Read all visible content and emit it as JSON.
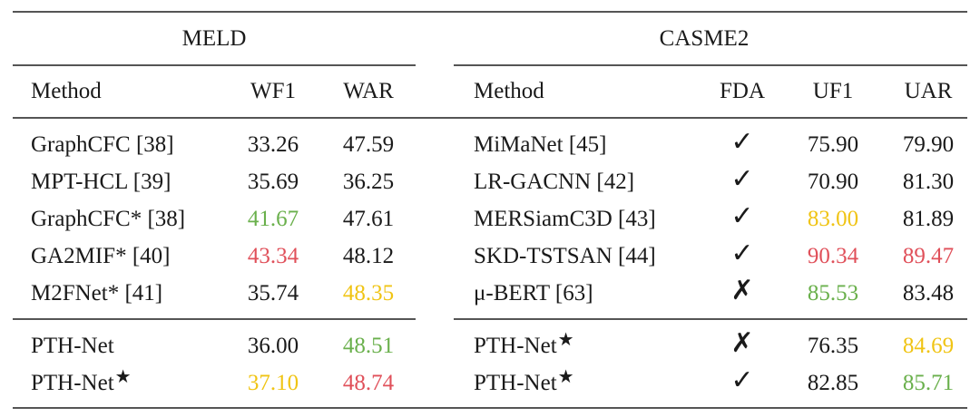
{
  "colors": {
    "red": "#e0505a",
    "green": "#6ab04c",
    "yellow": "#f0c414"
  },
  "meld": {
    "title": "MELD",
    "headers": [
      "Method",
      "WF1",
      "WAR"
    ],
    "rows": [
      {
        "method": "GraphCFC [38]",
        "wf1": "33.26",
        "war": "47.59"
      },
      {
        "method": "MPT-HCL [39]",
        "wf1": "35.69",
        "war": "36.25"
      },
      {
        "method": "GraphCFC* [38]",
        "wf1": "41.67",
        "war": "47.61"
      },
      {
        "method": "GA2MIF* [40]",
        "wf1": "43.34",
        "war": "48.12"
      },
      {
        "method": "M2FNet* [41]",
        "wf1": "35.74",
        "war": "48.35"
      },
      {
        "method": "PTH-Net",
        "wf1": "36.00",
        "war": "48.51"
      },
      {
        "method": "PTH-Net",
        "star": "★",
        "wf1": "37.10",
        "war": "48.74"
      }
    ]
  },
  "casme2": {
    "title": "CASME2",
    "headers": [
      "Method",
      "FDA",
      "UF1",
      "UAR"
    ],
    "rows": [
      {
        "method": "MiMaNet [45]",
        "fda": "✓",
        "uf1": "75.90",
        "uar": "79.90"
      },
      {
        "method": "LR-GACNN [42]",
        "fda": "✓",
        "uf1": "70.90",
        "uar": "81.30"
      },
      {
        "method": "MERSiamC3D [43]",
        "fda": "✓",
        "uf1": "83.00",
        "uar": "81.89"
      },
      {
        "method": "SKD-TSTSAN [44]",
        "fda": "✓",
        "uf1": "90.34",
        "uar": "89.47"
      },
      {
        "method": "μ-BERT [63]",
        "fda": "✗",
        "uf1": "85.53",
        "uar": "83.48"
      },
      {
        "method": "PTH-Net",
        "star": "★",
        "fda": "✗",
        "uf1": "76.35",
        "uar": "84.69"
      },
      {
        "method": "PTH-Net",
        "star": "★",
        "fda": "✓",
        "uf1": "82.85",
        "uar": "85.71"
      }
    ]
  }
}
